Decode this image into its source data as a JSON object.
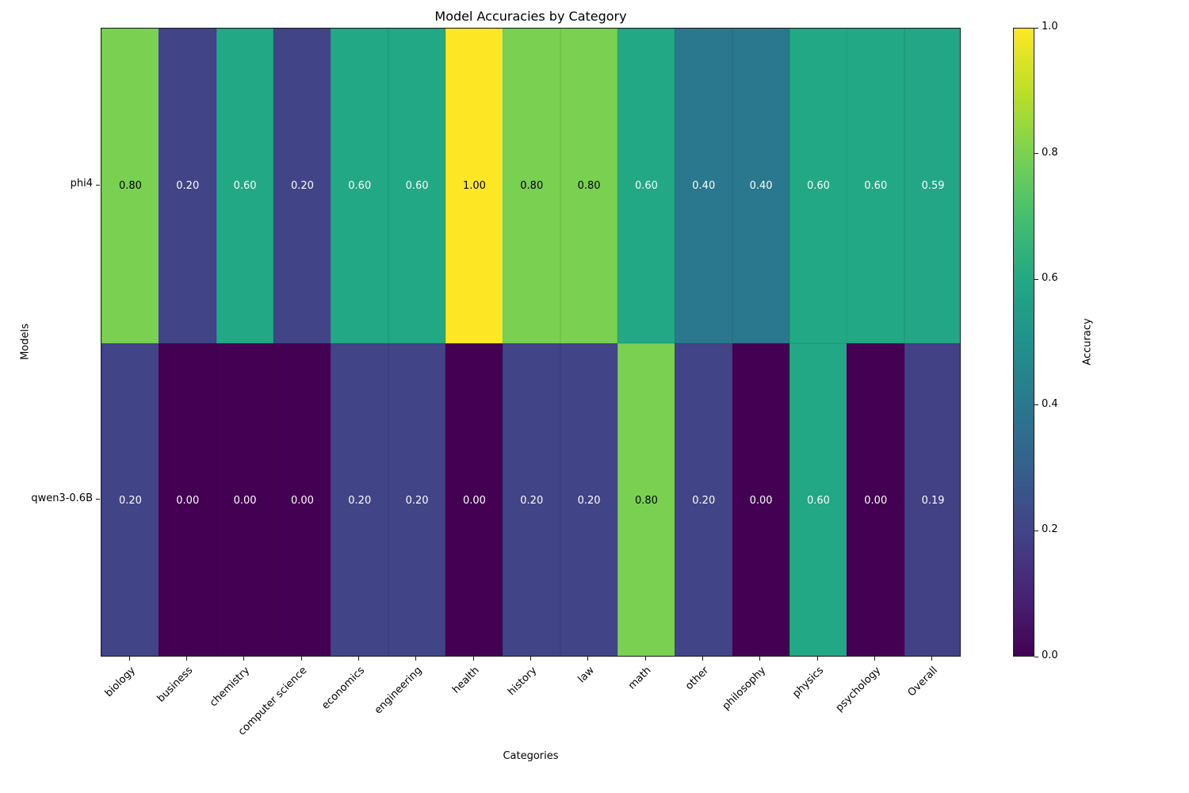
{
  "chart_data": {
    "type": "heatmap",
    "title": "Model Accuracies by Category",
    "xlabel": "Categories",
    "ylabel": "Models",
    "categories": [
      "biology",
      "business",
      "chemistry",
      "computer science",
      "economics",
      "engineering",
      "health",
      "history",
      "law",
      "math",
      "other",
      "philosophy",
      "physics",
      "psychology",
      "Overall"
    ],
    "series": [
      {
        "name": "phi4",
        "values": [
          0.8,
          0.2,
          0.6,
          0.2,
          0.6,
          0.6,
          1.0,
          0.8,
          0.8,
          0.6,
          0.4,
          0.4,
          0.6,
          0.6,
          0.59
        ]
      },
      {
        "name": "qwen3-0.6B",
        "values": [
          0.2,
          0.0,
          0.0,
          0.0,
          0.2,
          0.2,
          0.0,
          0.2,
          0.2,
          0.8,
          0.2,
          0.0,
          0.6,
          0.0,
          0.19
        ]
      }
    ],
    "value_format_decimals": 2,
    "colorbar": {
      "label": "Accuracy",
      "range": [
        0.0,
        1.0
      ],
      "ticks": [
        0.0,
        0.2,
        0.4,
        0.6,
        0.8,
        1.0
      ],
      "colormap": "viridis",
      "colormap_stops": [
        {
          "t": 0.0,
          "color": "#440154"
        },
        {
          "t": 0.1,
          "color": "#482475"
        },
        {
          "t": 0.2,
          "color": "#414487"
        },
        {
          "t": 0.3,
          "color": "#355f8d"
        },
        {
          "t": 0.4,
          "color": "#2a788e"
        },
        {
          "t": 0.5,
          "color": "#21918c"
        },
        {
          "t": 0.6,
          "color": "#22a884"
        },
        {
          "t": 0.7,
          "color": "#44bf70"
        },
        {
          "t": 0.8,
          "color": "#7ad151"
        },
        {
          "t": 0.9,
          "color": "#bddf26"
        },
        {
          "t": 1.0,
          "color": "#fde725"
        }
      ]
    },
    "cell_text_colors": {
      "light": "#ffffff",
      "dark": "#000000",
      "dark_text_threshold": 0.7
    }
  }
}
